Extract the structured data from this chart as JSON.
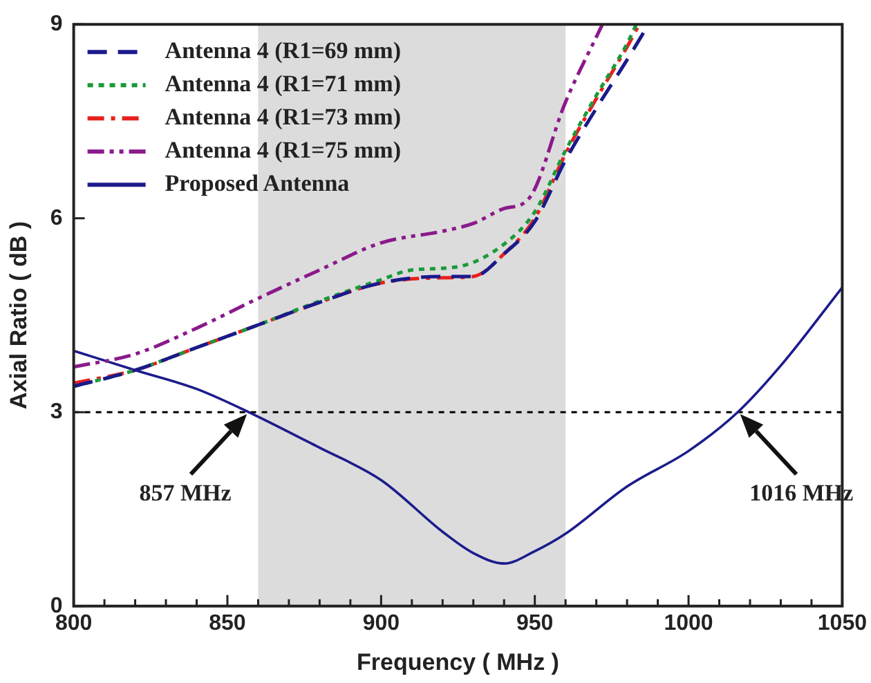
{
  "chart_data": {
    "type": "line",
    "xlabel": "Frequency ( MHz )",
    "ylabel": "Axial Ratio ( dB )",
    "xlim": [
      800,
      1050
    ],
    "ylim": [
      0,
      9
    ],
    "xticks": [
      800,
      {
        "value": 810,
        "label": null
      },
      {
        "value": 820,
        "label": null
      },
      {
        "value": 830,
        "label": null
      },
      {
        "value": 840,
        "label": null
      },
      850,
      {
        "value": 860,
        "label": null
      },
      {
        "value": 870,
        "label": null
      },
      {
        "value": 880,
        "label": null
      },
      {
        "value": 890,
        "label": null
      },
      900,
      {
        "value": 910,
        "label": null
      },
      {
        "value": 920,
        "label": null
      },
      {
        "value": 930,
        "label": null
      },
      {
        "value": 940,
        "label": null
      },
      950,
      {
        "value": 960,
        "label": null
      },
      {
        "value": 970,
        "label": null
      },
      {
        "value": 980,
        "label": null
      },
      {
        "value": 990,
        "label": null
      },
      1000,
      {
        "value": 1010,
        "label": null
      },
      {
        "value": 1020,
        "label": null
      },
      {
        "value": 1030,
        "label": null
      },
      {
        "value": 1040,
        "label": null
      },
      1050
    ],
    "yticks": [
      0,
      3,
      6,
      9
    ],
    "grid": false,
    "legend": "top left",
    "marker": "none",
    "series": [
      {
        "name": "Antenna 4 (R1=69 mm)",
        "color": "#1a1a8c",
        "line_style": "dashed",
        "x": [
          800,
          820,
          840,
          860,
          880,
          900,
          920,
          930,
          940,
          950,
          960,
          970,
          980,
          987
        ],
        "values": [
          3.4,
          3.65,
          4.0,
          4.35,
          4.7,
          5.0,
          5.1,
          5.1,
          5.45,
          5.95,
          6.9,
          7.7,
          8.45,
          9
        ]
      },
      {
        "name": "Antenna 4 (R1=71 mm)",
        "color": "#1a9a3a",
        "line_style": "dotted",
        "x": [
          800,
          820,
          840,
          860,
          880,
          900,
          910,
          925,
          940,
          950,
          960,
          970,
          980,
          983
        ],
        "values": [
          3.4,
          3.65,
          4.0,
          4.35,
          4.72,
          5.05,
          5.2,
          5.25,
          5.6,
          6.1,
          7.05,
          7.9,
          8.7,
          9
        ]
      },
      {
        "name": "Antenna 4 (R1=73 mm)",
        "color": "#e8201e",
        "line_style": "dashdot",
        "x": [
          800,
          820,
          840,
          860,
          880,
          900,
          920,
          930,
          940,
          950,
          960,
          970,
          980,
          984
        ],
        "values": [
          3.45,
          3.65,
          4.0,
          4.35,
          4.7,
          5.0,
          5.08,
          5.1,
          5.45,
          6.0,
          7.0,
          7.85,
          8.65,
          9
        ]
      },
      {
        "name": "Antenna 4 (R1=75 mm)",
        "color": "#8b1a8b",
        "line_style": "dashdotdot",
        "x": [
          800,
          820,
          840,
          860,
          880,
          900,
          920,
          930,
          940,
          948,
          960,
          972
        ],
        "values": [
          3.7,
          3.9,
          4.3,
          4.76,
          5.2,
          5.62,
          5.8,
          5.92,
          6.15,
          6.3,
          7.8,
          9
        ]
      },
      {
        "name": "Proposed Antenna",
        "color": "#1c1c8c",
        "line_style": "solid",
        "x": [
          800,
          820,
          840,
          857,
          880,
          900,
          920,
          930,
          940,
          950,
          960,
          980,
          1000,
          1016,
          1030,
          1050
        ],
        "values": [
          3.95,
          3.65,
          3.36,
          3.0,
          2.45,
          1.95,
          1.15,
          0.82,
          0.66,
          0.85,
          1.12,
          1.85,
          2.4,
          3.0,
          3.72,
          4.93
        ]
      }
    ],
    "ref_lines": [
      {
        "axis": "y",
        "value": 3,
        "color": "#000000",
        "line_style": "dotted"
      }
    ],
    "bands": [
      {
        "axis": "x",
        "from": 860,
        "to": 960,
        "color": "#dcdcdc"
      }
    ],
    "annotations": [
      {
        "text": "857 MHz",
        "x": 857,
        "y": 3
      },
      {
        "text": "1016 MHz",
        "x": 1016,
        "y": 3
      }
    ]
  }
}
